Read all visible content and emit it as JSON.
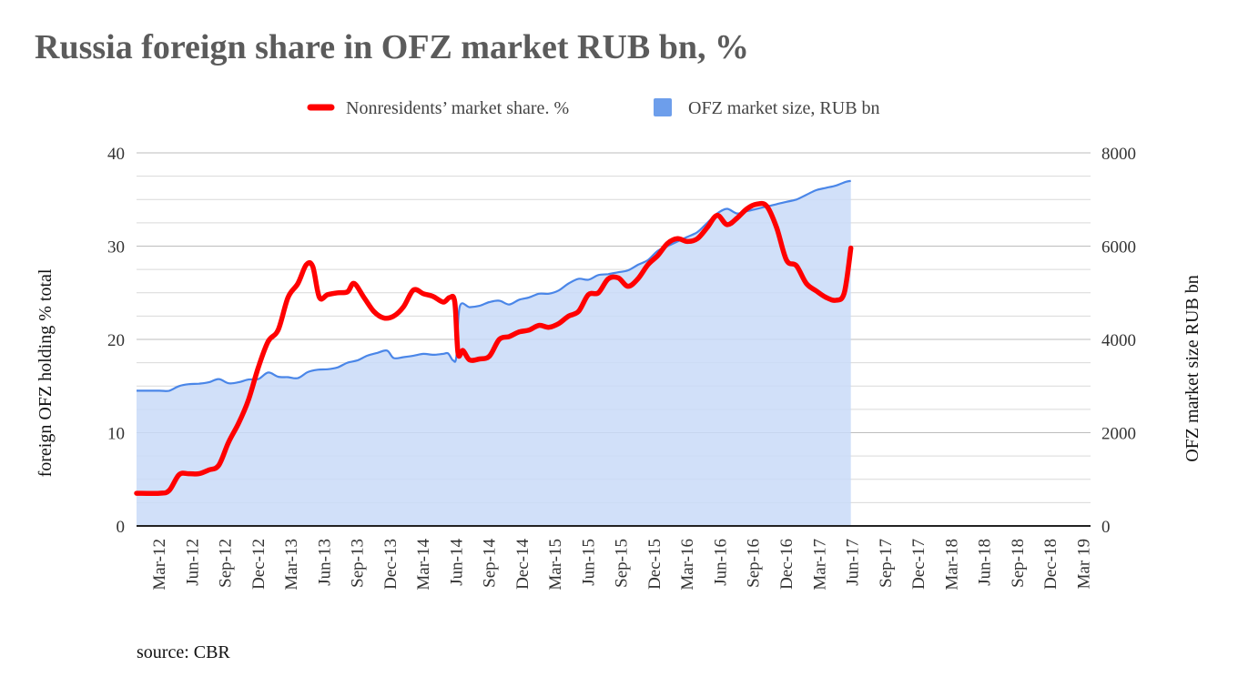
{
  "chart_data": {
    "type": "line",
    "title": "Russia foreign share in OFZ market RUB bn, %",
    "categories": [
      "Mar-12",
      "Jun-12",
      "Sep-12",
      "Dec-12",
      "Mar-13",
      "Jun-13",
      "Sep-13",
      "Dec-13",
      "Mar-14",
      "Jun-14",
      "Sep-14",
      "Dec-14",
      "Mar-15",
      "Jun-15",
      "Sep-15",
      "Dec-15",
      "Mar-16",
      "Jun-16",
      "Sep-16",
      "Dec-16",
      "Mar-17",
      "Jun-17",
      "Sep-17",
      "Dec-17",
      "Mar-18",
      "Jun-18",
      "Sep-18",
      "Dec-18",
      "Mar 19"
    ],
    "legend_position": "top",
    "grid": true,
    "y_left": {
      "label": "foreign OFZ holding % total",
      "ticks": [
        "0",
        "10",
        "20",
        "30",
        "40"
      ],
      "lim": [
        0,
        40
      ]
    },
    "y_right": {
      "label": "OFZ market size RUB bn",
      "ticks": [
        "0",
        "2000",
        "4000",
        "6000",
        "8000"
      ],
      "lim": [
        0,
        8000
      ]
    },
    "series": [
      {
        "name": "Nonresidents’ market share. %",
        "type": "line",
        "axis": "left",
        "color": "#ff0000",
        "points": [
          [
            0,
            3.5
          ],
          [
            0.3,
            3.8
          ],
          [
            0.6,
            5.5
          ],
          [
            0.9,
            5.6
          ],
          [
            1.2,
            5.6
          ],
          [
            1.5,
            6.0
          ],
          [
            1.8,
            6.5
          ],
          [
            2.1,
            9.0
          ],
          [
            2.4,
            11.0
          ],
          [
            2.7,
            13.5
          ],
          [
            3.0,
            17.0
          ],
          [
            3.3,
            19.8
          ],
          [
            3.6,
            21.0
          ],
          [
            3.9,
            24.5
          ],
          [
            4.2,
            26.0
          ],
          [
            4.45,
            28.0
          ],
          [
            4.65,
            27.8
          ],
          [
            4.85,
            24.5
          ],
          [
            5.1,
            24.8
          ],
          [
            5.4,
            25.0
          ],
          [
            5.7,
            25.1
          ],
          [
            5.9,
            26.0
          ],
          [
            6.2,
            24.5
          ],
          [
            6.5,
            23.0
          ],
          [
            6.8,
            22.3
          ],
          [
            7.1,
            22.5
          ],
          [
            7.4,
            23.5
          ],
          [
            7.7,
            25.3
          ],
          [
            8.0,
            24.9
          ],
          [
            8.3,
            24.6
          ],
          [
            8.6,
            24.0
          ],
          [
            8.8,
            24.5
          ],
          [
            8.95,
            24.0
          ],
          [
            9.05,
            18.5
          ],
          [
            9.2,
            18.8
          ],
          [
            9.4,
            17.8
          ],
          [
            9.7,
            17.9
          ],
          [
            10.0,
            18.2
          ],
          [
            10.3,
            20.0
          ],
          [
            10.6,
            20.3
          ],
          [
            10.9,
            20.8
          ],
          [
            11.2,
            21.0
          ],
          [
            11.5,
            21.5
          ],
          [
            11.8,
            21.3
          ],
          [
            12.1,
            21.7
          ],
          [
            12.4,
            22.5
          ],
          [
            12.7,
            23.0
          ],
          [
            13.0,
            24.8
          ],
          [
            13.3,
            25.0
          ],
          [
            13.6,
            26.5
          ],
          [
            13.9,
            26.6
          ],
          [
            14.2,
            25.7
          ],
          [
            14.5,
            26.5
          ],
          [
            14.8,
            28.0
          ],
          [
            15.1,
            29.0
          ],
          [
            15.4,
            30.3
          ],
          [
            15.7,
            30.8
          ],
          [
            16.0,
            30.5
          ],
          [
            16.3,
            30.8
          ],
          [
            16.6,
            32.0
          ],
          [
            16.9,
            33.3
          ],
          [
            17.2,
            32.3
          ],
          [
            17.5,
            33.0
          ],
          [
            17.8,
            34.0
          ],
          [
            18.1,
            34.5
          ],
          [
            18.4,
            34.3
          ],
          [
            18.7,
            32.0
          ],
          [
            19.0,
            28.5
          ],
          [
            19.3,
            27.9
          ],
          [
            19.6,
            26.0
          ],
          [
            19.9,
            25.2
          ],
          [
            20.2,
            24.5
          ],
          [
            20.5,
            24.2
          ],
          [
            20.75,
            25.0
          ],
          [
            20.95,
            29.8
          ]
        ]
      },
      {
        "name": "OFZ market size, RUB bn",
        "type": "area",
        "axis": "right",
        "color": "#4a86e8",
        "fill": "#c9daf8",
        "points": [
          [
            0,
            2900
          ],
          [
            0.3,
            2900
          ],
          [
            0.6,
            3000
          ],
          [
            0.9,
            3040
          ],
          [
            1.2,
            3050
          ],
          [
            1.5,
            3080
          ],
          [
            1.8,
            3150
          ],
          [
            2.1,
            3060
          ],
          [
            2.4,
            3080
          ],
          [
            2.7,
            3140
          ],
          [
            3.0,
            3150
          ],
          [
            3.3,
            3290
          ],
          [
            3.6,
            3200
          ],
          [
            3.9,
            3190
          ],
          [
            4.2,
            3170
          ],
          [
            4.5,
            3300
          ],
          [
            4.8,
            3350
          ],
          [
            5.1,
            3360
          ],
          [
            5.4,
            3400
          ],
          [
            5.7,
            3500
          ],
          [
            6.0,
            3550
          ],
          [
            6.3,
            3650
          ],
          [
            6.6,
            3710
          ],
          [
            6.9,
            3760
          ],
          [
            7.1,
            3600
          ],
          [
            7.4,
            3620
          ],
          [
            7.7,
            3650
          ],
          [
            8.0,
            3690
          ],
          [
            8.3,
            3670
          ],
          [
            8.6,
            3690
          ],
          [
            8.75,
            3700
          ],
          [
            8.9,
            3550
          ],
          [
            9.0,
            3640
          ],
          [
            9.1,
            4700
          ],
          [
            9.4,
            4690
          ],
          [
            9.7,
            4720
          ],
          [
            10.0,
            4800
          ],
          [
            10.3,
            4830
          ],
          [
            10.6,
            4750
          ],
          [
            10.9,
            4850
          ],
          [
            11.2,
            4900
          ],
          [
            11.5,
            4980
          ],
          [
            11.8,
            4980
          ],
          [
            12.1,
            5050
          ],
          [
            12.4,
            5200
          ],
          [
            12.7,
            5300
          ],
          [
            13.0,
            5280
          ],
          [
            13.3,
            5380
          ],
          [
            13.6,
            5400
          ],
          [
            13.9,
            5440
          ],
          [
            14.2,
            5480
          ],
          [
            14.5,
            5600
          ],
          [
            14.8,
            5700
          ],
          [
            15.1,
            5900
          ],
          [
            15.4,
            6000
          ],
          [
            15.7,
            6100
          ],
          [
            16.0,
            6200
          ],
          [
            16.3,
            6300
          ],
          [
            16.6,
            6500
          ],
          [
            16.9,
            6700
          ],
          [
            17.2,
            6800
          ],
          [
            17.5,
            6700
          ],
          [
            17.8,
            6750
          ],
          [
            18.1,
            6800
          ],
          [
            18.4,
            6850
          ],
          [
            18.7,
            6900
          ],
          [
            19.0,
            6950
          ],
          [
            19.3,
            7000
          ],
          [
            19.6,
            7100
          ],
          [
            19.9,
            7200
          ],
          [
            20.2,
            7250
          ],
          [
            20.5,
            7300
          ],
          [
            20.8,
            7380
          ],
          [
            20.95,
            7400
          ]
        ]
      }
    ],
    "source": "source: CBR"
  }
}
